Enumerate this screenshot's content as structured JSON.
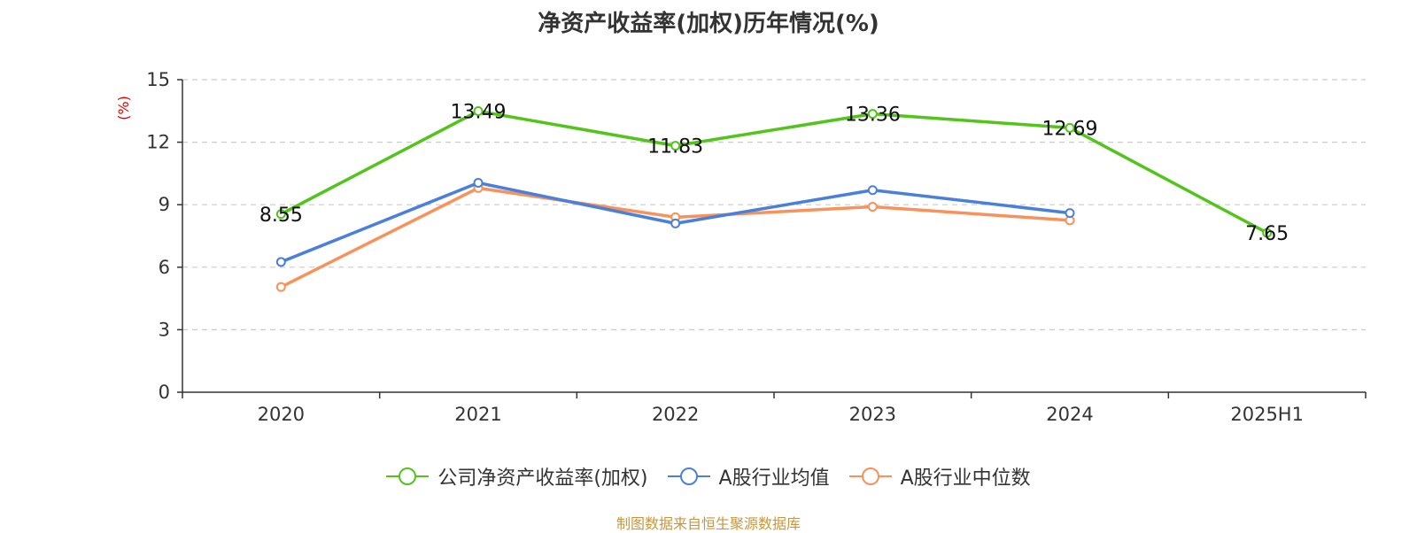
{
  "chart_data": {
    "type": "line",
    "title": "净资产收益率(加权)历年情况(%)",
    "ylabel": "(%)",
    "xlabel": "",
    "categories": [
      "2020",
      "2021",
      "2022",
      "2023",
      "2024",
      "2025H1"
    ],
    "ylim": [
      0,
      15
    ],
    "yticks": [
      0,
      3,
      6,
      9,
      12,
      15
    ],
    "grid": true,
    "legend_position": "bottom",
    "series": [
      {
        "name": "公司净资产收益率(加权)",
        "color": "#52c41a",
        "labels": true,
        "values": [
          8.55,
          13.49,
          11.83,
          13.36,
          12.69,
          7.65
        ]
      },
      {
        "name": "A股行业均值",
        "color": "#4a7fdc",
        "labels": false,
        "values": [
          6.25,
          10.05,
          8.1,
          9.7,
          8.6,
          null
        ]
      },
      {
        "name": "A股行业中位数",
        "color": "#f8925a",
        "labels": false,
        "values": [
          5.05,
          9.8,
          8.4,
          8.9,
          8.25,
          null
        ]
      }
    ],
    "source": "制图数据来自恒生聚源数据库"
  }
}
